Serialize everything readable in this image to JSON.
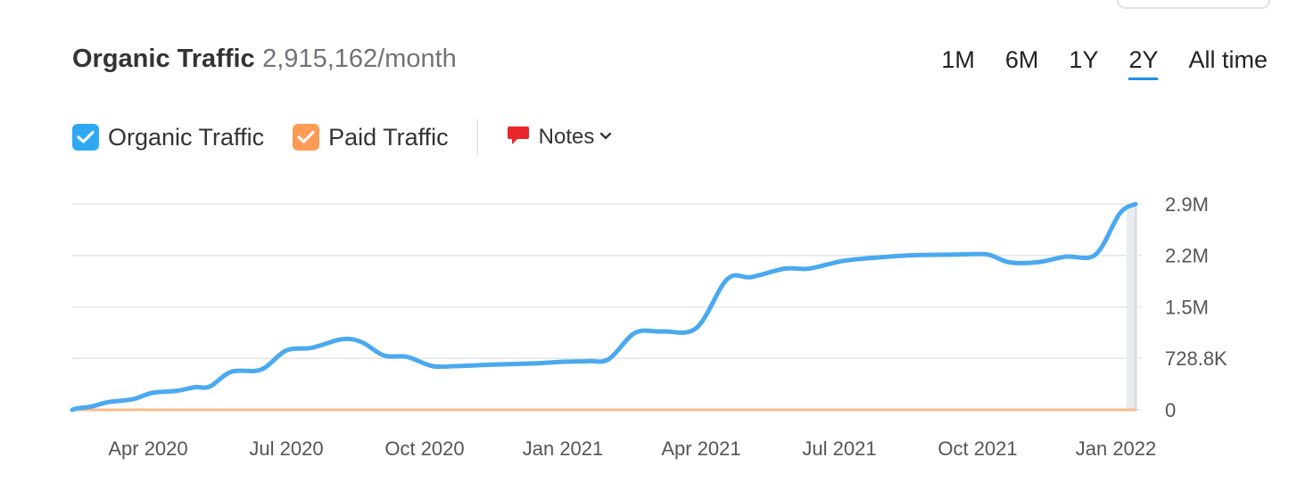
{
  "header": {
    "title": "Organic Traffic",
    "value": "2,915,162/month"
  },
  "ranges": [
    {
      "label": "1M",
      "active": false
    },
    {
      "label": "6M",
      "active": false
    },
    {
      "label": "1Y",
      "active": false
    },
    {
      "label": "2Y",
      "active": true
    },
    {
      "label": "All time",
      "active": false
    }
  ],
  "legend": {
    "organic_label": "Organic Traffic",
    "paid_label": "Paid Traffic",
    "notes_label": "Notes"
  },
  "colors": {
    "organic": "#4aa9ef",
    "paid": "#ffb987",
    "active_range": "#1e91e6",
    "grid": "#e3e6ea"
  },
  "chart_data": {
    "type": "line",
    "ylim": [
      0,
      2915162
    ],
    "yticks": [
      {
        "value": 0,
        "label": "0"
      },
      {
        "value": 728800,
        "label": "728.8K"
      },
      {
        "value": 1457600,
        "label": "1.5M"
      },
      {
        "value": 2186400,
        "label": "2.2M"
      },
      {
        "value": 2915162,
        "label": "2.9M"
      }
    ],
    "x_ticks": [
      "Apr 2020",
      "Jul 2020",
      "Oct 2020",
      "Jan 2021",
      "Apr 2021",
      "Jul 2021",
      "Oct 2021",
      "Jan 2022"
    ],
    "series": [
      {
        "name": "Organic Traffic",
        "color": "#4aa9ef",
        "points": [
          [
            0.0,
            0
          ],
          [
            0.05,
            20000
          ],
          [
            0.18,
            40000
          ],
          [
            0.26,
            65000
          ],
          [
            0.39,
            110000
          ],
          [
            0.65,
            150000
          ],
          [
            0.86,
            240000
          ],
          [
            1.13,
            270000
          ],
          [
            1.32,
            320000
          ],
          [
            1.48,
            330000
          ],
          [
            1.71,
            540000
          ],
          [
            2.03,
            570000
          ],
          [
            2.3,
            840000
          ],
          [
            2.58,
            880000
          ],
          [
            2.9,
            1000000
          ],
          [
            3.11,
            960000
          ],
          [
            3.35,
            770000
          ],
          [
            3.6,
            750000
          ],
          [
            3.87,
            620000
          ],
          [
            4.14,
            620000
          ],
          [
            4.52,
            640000
          ],
          [
            5.01,
            660000
          ],
          [
            5.26,
            680000
          ],
          [
            5.55,
            690000
          ],
          [
            5.77,
            720000
          ],
          [
            6.05,
            1090000
          ],
          [
            6.35,
            1110000
          ],
          [
            6.71,
            1160000
          ],
          [
            7.04,
            1850000
          ],
          [
            7.3,
            1880000
          ],
          [
            7.66,
            2000000
          ],
          [
            7.92,
            2000000
          ],
          [
            8.29,
            2110000
          ],
          [
            8.68,
            2160000
          ],
          [
            9.04,
            2190000
          ],
          [
            9.55,
            2200000
          ],
          [
            9.84,
            2200000
          ],
          [
            10.07,
            2090000
          ],
          [
            10.37,
            2090000
          ],
          [
            10.68,
            2170000
          ],
          [
            11.0,
            2200000
          ],
          [
            11.26,
            2780000
          ],
          [
            11.43,
            2915162
          ]
        ]
      },
      {
        "name": "Paid Traffic",
        "color": "#ffb987",
        "points": [
          [
            0.0,
            0
          ],
          [
            11.43,
            0
          ]
        ]
      }
    ]
  }
}
